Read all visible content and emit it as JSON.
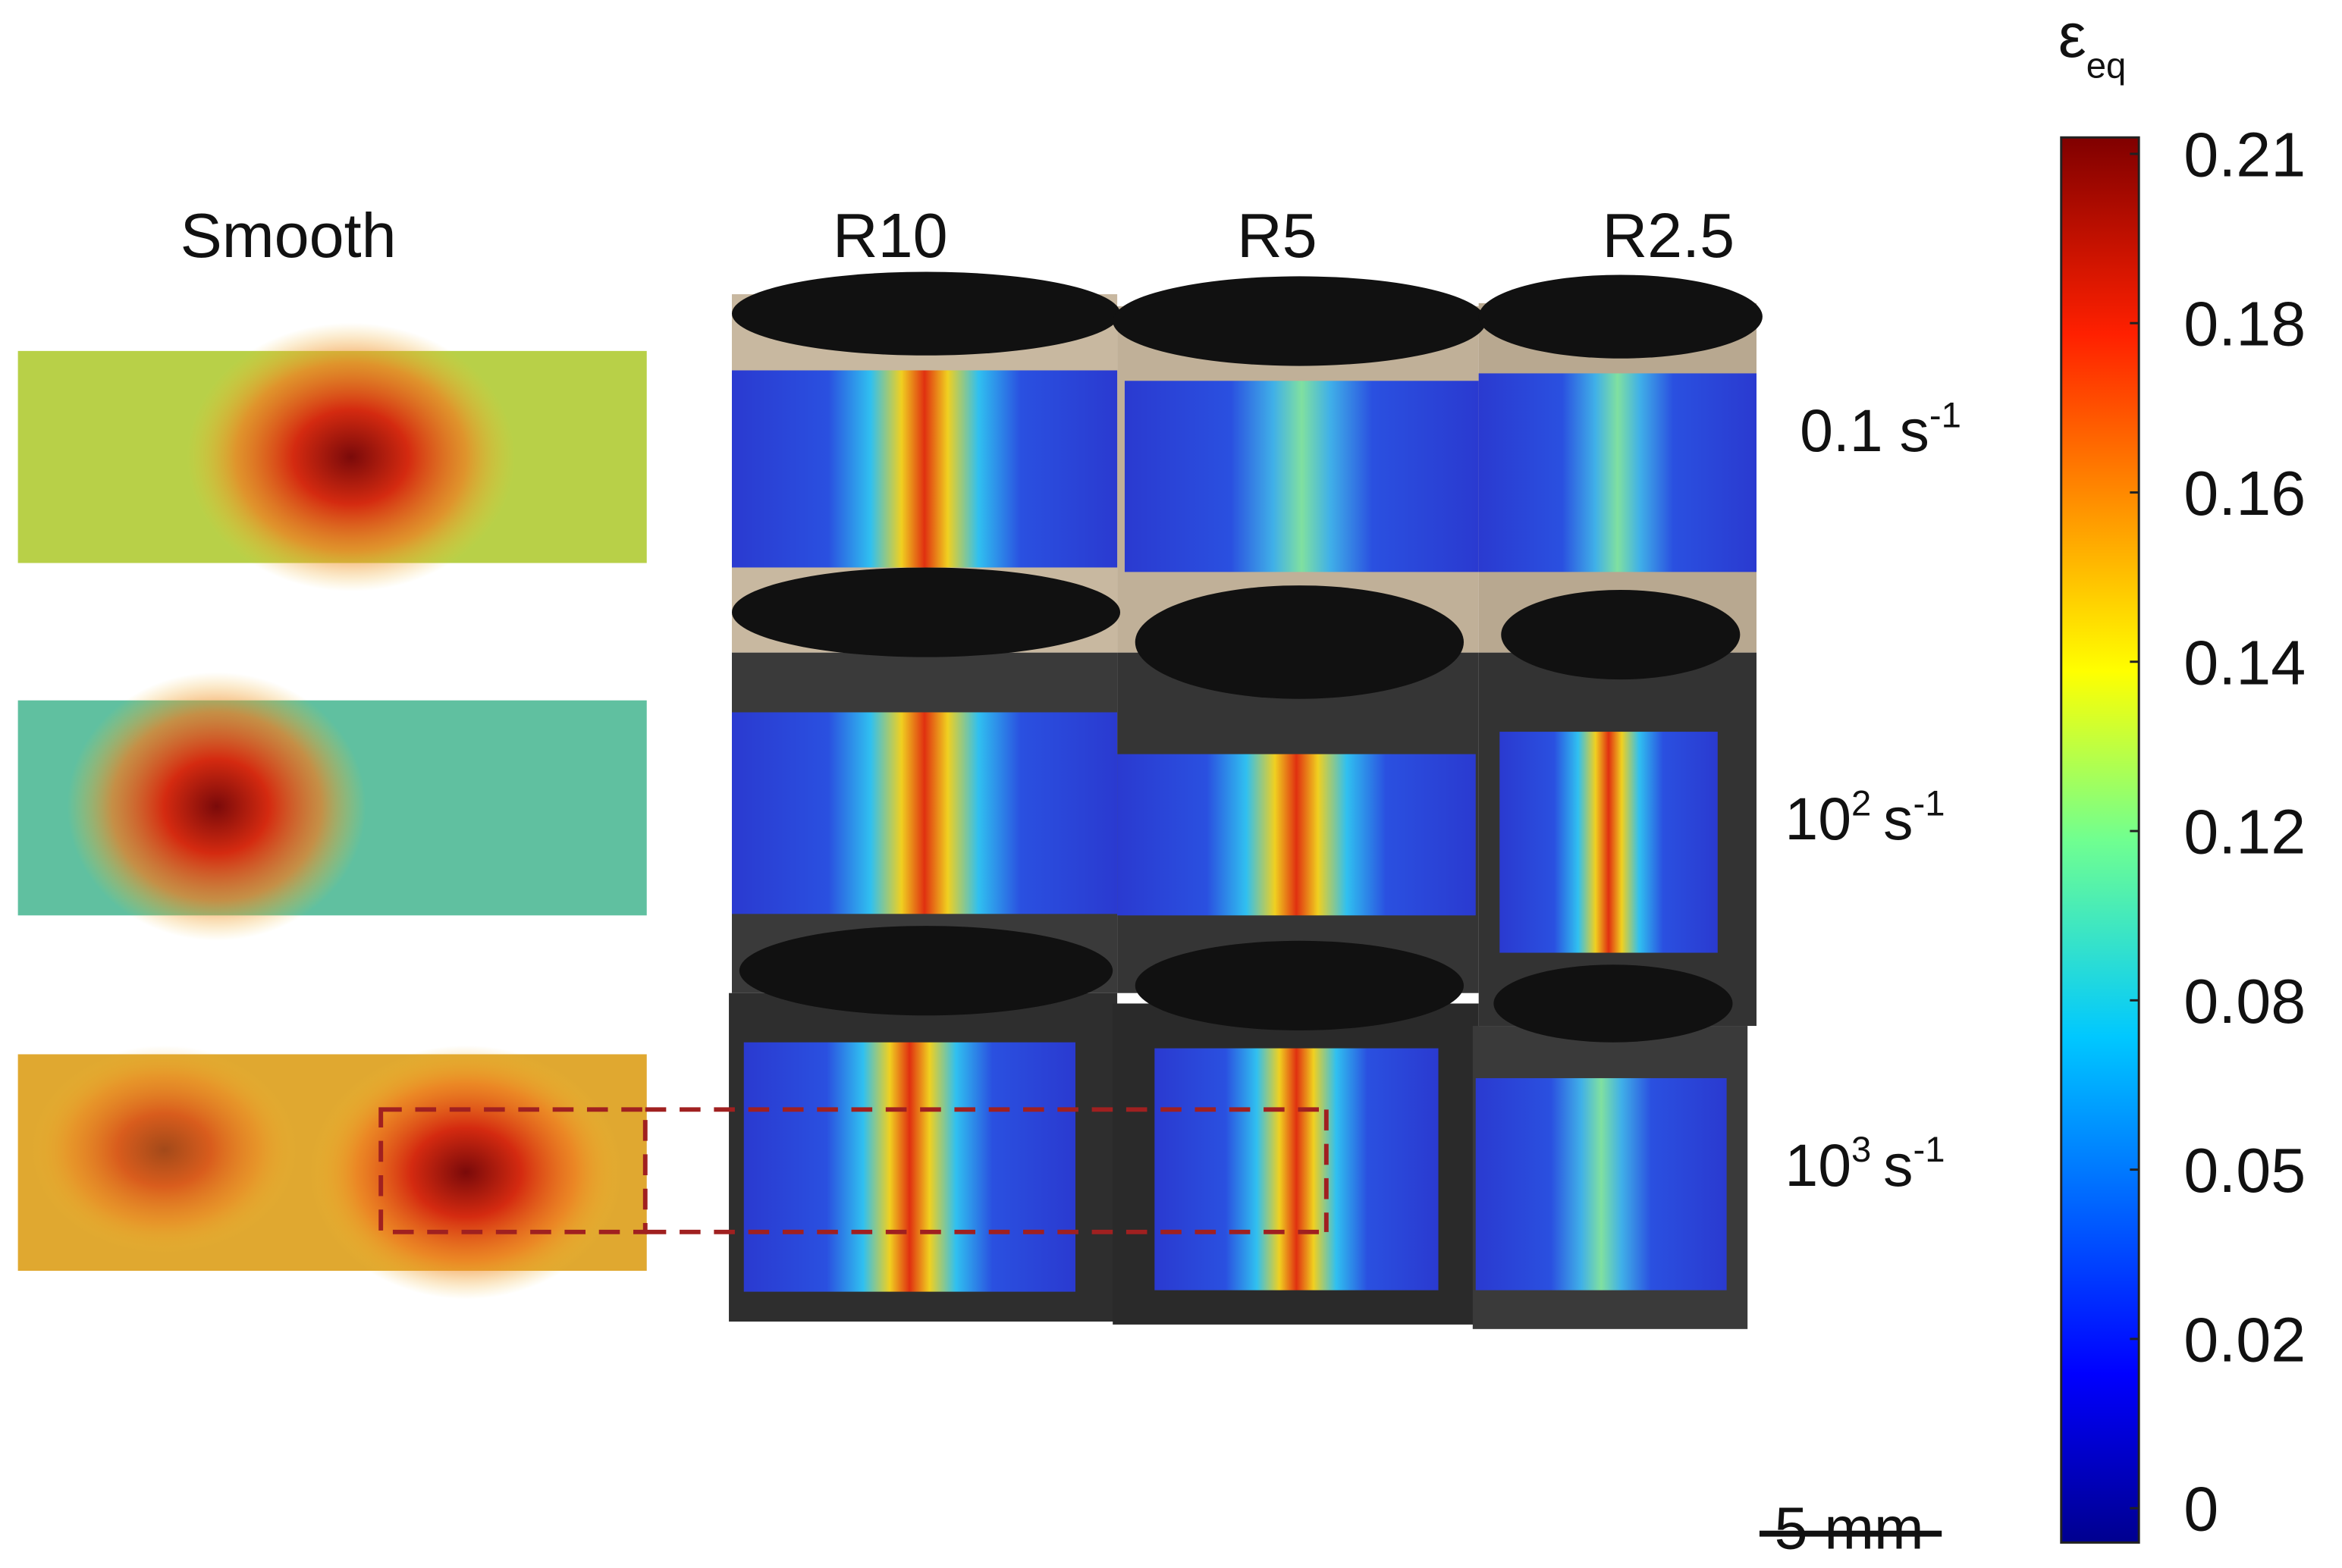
{
  "columns": [
    "Smooth",
    "R10",
    "R5",
    "R2.5"
  ],
  "rates": [
    {
      "base": "0.1",
      "unit": "s",
      "exp": "-1"
    },
    {
      "base": "10",
      "exp_base": "2",
      "unit": "s",
      "exp": "-1"
    },
    {
      "base": "10",
      "exp_base": "3",
      "unit": "s",
      "exp": "-1"
    }
  ],
  "colorbar": {
    "symbol": "ε",
    "subscript": "eq",
    "ticks": [
      "0.21",
      "0.18",
      "0.16",
      "0.14",
      "0.12",
      "0.08",
      "0.05",
      "0.02",
      "0"
    ]
  },
  "scale_bar": "5 mm"
}
